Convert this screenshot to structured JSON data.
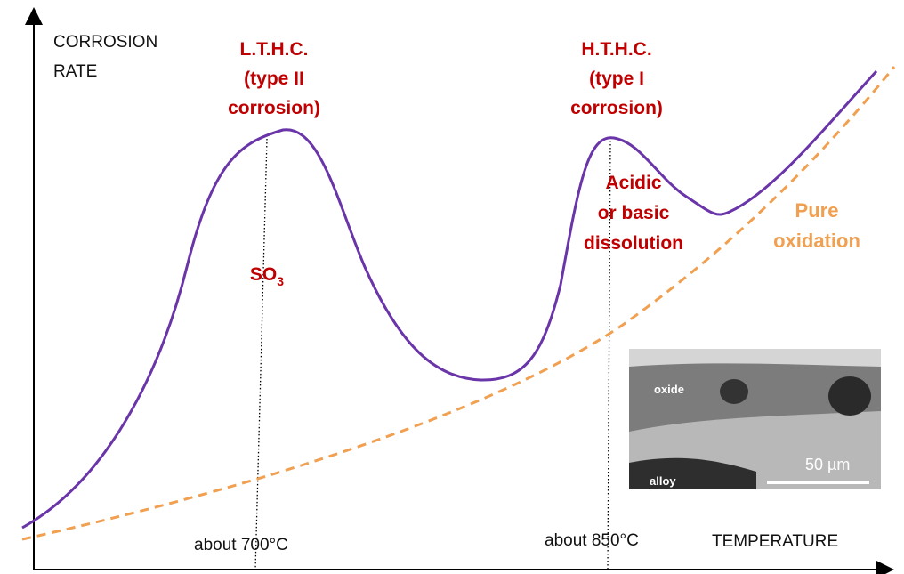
{
  "axes": {
    "y_label": [
      "CORROSION",
      "RATE"
    ],
    "x_label": "TEMPERATURE"
  },
  "annotations": {
    "lthc": [
      "L.T.H.C.",
      "(type II",
      "corrosion)"
    ],
    "hthc": [
      "H.T.H.C.",
      "(type I",
      "corrosion)"
    ],
    "dissolution": [
      "Acidic",
      "or basic",
      "dissolution"
    ],
    "oxidation": [
      "Pure",
      "oxidation"
    ],
    "so3": {
      "base": "SO",
      "subscript": "3"
    },
    "t700": "about 700°C",
    "t850": "about 850°C"
  },
  "inset": {
    "oxide": "oxide",
    "alloy": "alloy",
    "scale": "50 µm"
  }
}
